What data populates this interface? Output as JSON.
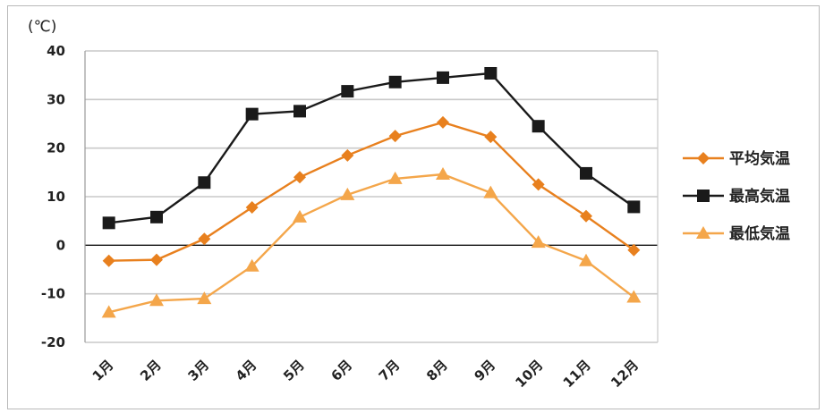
{
  "chart_data": {
    "type": "line",
    "title": "",
    "xlabel": "",
    "ylabel": "",
    "unit_label": "(℃)",
    "categories": [
      "1月",
      "2月",
      "3月",
      "4月",
      "5月",
      "6月",
      "7月",
      "8月",
      "9月",
      "10月",
      "11月",
      "12月"
    ],
    "ylim": [
      -20,
      40
    ],
    "yticks": [
      40,
      30,
      20,
      10,
      0,
      -10,
      -20
    ],
    "grid": true,
    "legend": "right",
    "series": [
      {
        "name": "平均気温",
        "color": "#e8801e",
        "marker": "diamond",
        "values": [
          -3.2,
          -3.0,
          1.3,
          7.8,
          14.0,
          18.5,
          22.5,
          25.3,
          22.3,
          12.5,
          6.0,
          -1.0
        ]
      },
      {
        "name": "最高気温",
        "color": "#1a1a1a",
        "marker": "square",
        "values": [
          4.6,
          5.8,
          12.9,
          27.0,
          27.6,
          31.7,
          33.6,
          34.5,
          35.4,
          24.5,
          14.8,
          7.9
        ]
      },
      {
        "name": "最低気温",
        "color": "#f4a64a",
        "marker": "triangle",
        "values": [
          -13.8,
          -11.4,
          -11.0,
          -4.3,
          5.8,
          10.4,
          13.7,
          14.6,
          10.8,
          0.6,
          -3.2,
          -10.7
        ]
      }
    ]
  }
}
